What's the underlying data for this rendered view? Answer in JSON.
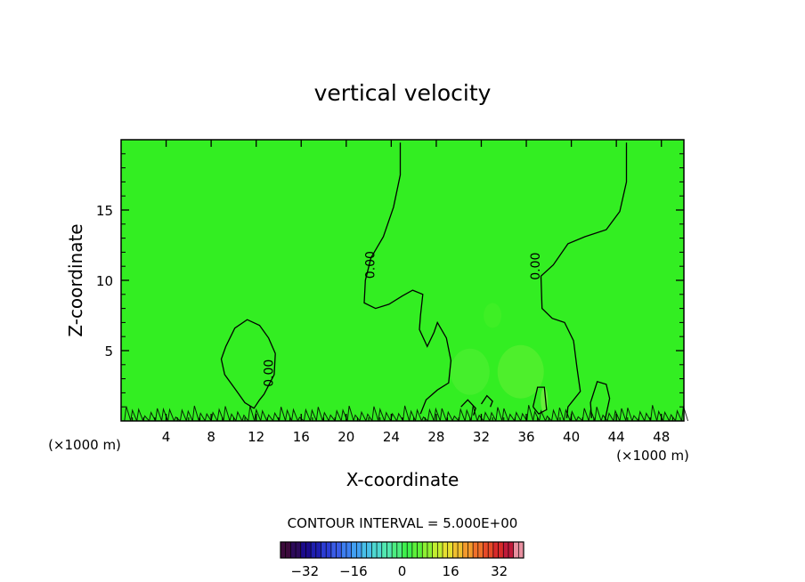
{
  "chart_data": {
    "type": "heatmap",
    "title": "vertical velocity",
    "xlabel": "X-coordinate",
    "ylabel": "Z-coordinate",
    "x_unit": "(×1000 m)",
    "x_unit_right": "(×1000 m)",
    "xlim": [
      0,
      50
    ],
    "ylim": [
      0,
      20
    ],
    "x_ticks": [
      4,
      8,
      12,
      16,
      20,
      24,
      28,
      32,
      36,
      40,
      44,
      48
    ],
    "y_ticks": [
      5,
      10,
      15
    ],
    "grid": false,
    "field_color": "#33ee22",
    "contour_levels": [
      0.0
    ],
    "contour_labels": [
      {
        "text": "0.00",
        "x": 22.5,
        "z": 11.1
      },
      {
        "text": "0.00",
        "x": 37.2,
        "z": 11.0
      },
      {
        "text": "0.00",
        "x": 13.5,
        "z": 3.4
      }
    ],
    "zero_contours": [
      [
        [
          24.8,
          19.8
        ],
        [
          24.8,
          17.5
        ],
        [
          24.2,
          15.2
        ],
        [
          23.3,
          13.1
        ],
        [
          22.2,
          11.6
        ],
        [
          21.7,
          10.0
        ],
        [
          21.6,
          8.4
        ],
        [
          22.6,
          8.0
        ],
        [
          23.8,
          8.3
        ],
        [
          25.0,
          8.9
        ],
        [
          25.9,
          9.3
        ],
        [
          26.8,
          9.0
        ],
        [
          26.6,
          7.5
        ],
        [
          26.5,
          6.5
        ],
        [
          27.2,
          5.3
        ],
        [
          27.8,
          6.3
        ],
        [
          28.1,
          7.0
        ],
        [
          28.9,
          5.9
        ],
        [
          29.3,
          4.3
        ],
        [
          29.1,
          2.7
        ],
        [
          28.1,
          2.2
        ],
        [
          27.1,
          1.5
        ],
        [
          26.6,
          0.5
        ]
      ],
      [
        [
          44.9,
          19.8
        ],
        [
          44.9,
          17.0
        ],
        [
          44.3,
          14.9
        ],
        [
          43.1,
          13.6
        ],
        [
          41.2,
          13.1
        ],
        [
          39.7,
          12.6
        ],
        [
          38.4,
          11.1
        ],
        [
          37.3,
          10.3
        ],
        [
          37.4,
          8.0
        ],
        [
          38.3,
          7.3
        ],
        [
          39.4,
          7.0
        ],
        [
          40.2,
          5.7
        ],
        [
          40.5,
          3.8
        ],
        [
          40.8,
          2.1
        ],
        [
          39.7,
          1.0
        ],
        [
          39.6,
          0.2
        ]
      ],
      [
        [
          13.7,
          4.8
        ],
        [
          13.1,
          5.9
        ],
        [
          12.3,
          6.8
        ],
        [
          11.2,
          7.2
        ],
        [
          10.1,
          6.6
        ],
        [
          9.3,
          5.3
        ],
        [
          8.9,
          4.4
        ],
        [
          9.2,
          3.3
        ],
        [
          10.2,
          2.2
        ],
        [
          11.0,
          1.3
        ],
        [
          11.8,
          0.9
        ],
        [
          12.3,
          1.5
        ],
        [
          12.7,
          1.9
        ],
        [
          13.6,
          3.3
        ],
        [
          13.7,
          4.8
        ]
      ],
      [
        [
          43.0,
          0.1
        ],
        [
          43.4,
          1.6
        ],
        [
          43.1,
          2.6
        ],
        [
          42.3,
          2.8
        ],
        [
          41.7,
          1.3
        ],
        [
          41.8,
          0.2
        ]
      ],
      [
        [
          30.2,
          1.0
        ],
        [
          30.8,
          1.5
        ],
        [
          31.5,
          0.9
        ],
        [
          31.3,
          0.4
        ]
      ],
      [
        [
          32.0,
          1.2
        ],
        [
          32.5,
          1.8
        ],
        [
          33.0,
          1.4
        ],
        [
          32.8,
          1.0
        ]
      ],
      [
        [
          36.6,
          1.0
        ],
        [
          37.0,
          2.4
        ],
        [
          37.6,
          2.4
        ],
        [
          37.8,
          0.8
        ],
        [
          37.1,
          0.5
        ],
        [
          36.6,
          1.0
        ]
      ]
    ],
    "colorbar": {
      "title": "CONTOUR INTERVAL = 5.000E+00",
      "min": -40,
      "max": 40,
      "ticks": [
        -32,
        -16,
        0,
        16,
        32
      ],
      "tick_labels": [
        "−32",
        "−16",
        "0",
        "16",
        "32"
      ],
      "colors": [
        "#3b0a3b",
        "#2c0a5a",
        "#1a0a8c",
        "#1e1eb0",
        "#2b3cd4",
        "#3a5ce6",
        "#3d7ff0",
        "#42a0f2",
        "#48bfe8",
        "#4ed8d0",
        "#52e8b0",
        "#4cee80",
        "#3ef04c",
        "#5cf03a",
        "#8ef033",
        "#c2ee30",
        "#e6e030",
        "#f0c02e",
        "#f49a2c",
        "#f0702a",
        "#e84a28",
        "#d82a2a",
        "#c01a3a",
        "#e890a0"
      ]
    }
  }
}
